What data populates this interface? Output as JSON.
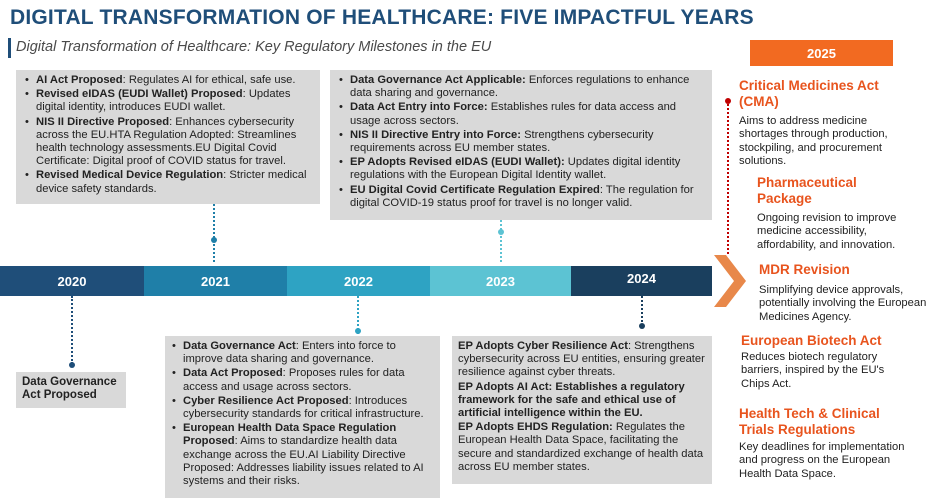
{
  "title": "DIGITAL TRANSFORMATION OF HEALTHCARE: FIVE IMPACTFUL YEARS",
  "subtitle": "Digital Transformation of Healthcare: Key Regulatory Milestones in the EU",
  "timeline": {
    "years": [
      "2020",
      "2021",
      "2022",
      "2023",
      "2024"
    ],
    "colors": [
      "#1f4e79",
      "#1f7fa8",
      "#2ea3c3",
      "#5cc3d3",
      "#1a3f5e"
    ],
    "arrow_color": "#e8884a"
  },
  "box_2021": [
    {
      "bold": "AI Act Proposed",
      "text": ": Regulates AI for ethical, safe use."
    },
    {
      "bold": "Revised eIDAS (EUDI Wallet) Proposed",
      "text": ": Updates digital identity, introduces EUDI wallet."
    },
    {
      "bold": "NIS II Directive Proposed",
      "text": ": Enhances cybersecurity across the EU.HTA Regulation Adopted: Streamlines health technology assessments.EU Digital Covid Certificate: Digital proof of COVID status for travel."
    },
    {
      "bold": "Revised Medical Device Regulation",
      "text": ": Stricter medical device safety standards."
    }
  ],
  "box_2023": [
    {
      "bold": "Data Governance Act Applicable:",
      "text": " Enforces regulations to enhance data sharing and governance."
    },
    {
      "bold": "Data Act Entry into Force:",
      "text": " Establishes rules for data access and usage across sectors."
    },
    {
      "bold": "NIS II Directive Entry into Force:",
      "text": " Strengthens cybersecurity requirements across EU member states."
    },
    {
      "bold": "EP Adopts Revised eIDAS (EUDI Wallet):",
      "text": " Updates digital identity regulations with the European Digital Identity wallet."
    },
    {
      "bold": "EU Digital Covid Certificate Regulation Expired",
      "text": ": The regulation for digital COVID-19 status proof for travel is no longer valid."
    }
  ],
  "box_2022": [
    {
      "bold": "Data Governance Act",
      "text": ": Enters into force to improve data sharing and governance."
    },
    {
      "bold": "Data Act Proposed",
      "text": ": Proposes rules for data access and usage across sectors."
    },
    {
      "bold": "Cyber Resilience Act Proposed",
      "text": ": Introduces cybersecurity standards for critical infrastructure."
    },
    {
      "bold": "European Health Data Space Regulation Proposed",
      "text": ": Aims to standardize health data exchange across the EU.AI Liability Directive Proposed: Addresses liability issues related to AI systems and their risks."
    }
  ],
  "box_2024": [
    {
      "bold": "EP Adopts Cyber Resilience Act",
      "text": ": Strengthens cybersecurity across EU entities, ensuring greater resilience against cyber threats."
    },
    {
      "bold": "EP Adopts AI Act: Establishes a regulatory framework for the safe and ethical use of artificial intelligence within the EU.",
      "text": ""
    },
    {
      "bold": "EP Adopts EHDS Regulation:",
      "text": " Regulates the European Health Data Space, facilitating the secure and standardized exchange of health data across EU member states."
    }
  ],
  "box_2020_label": "Data Governance Act Proposed",
  "year_2025": {
    "badge": "2025",
    "badge_color": "#f26a21",
    "items": [
      {
        "heading": "Critical Medicines Act (CMA)",
        "desc": "Aims to address medicine shortages through production, stockpiling, and procurement solutions."
      },
      {
        "heading": "Pharmaceutical Package",
        "desc": "Ongoing revision to improve medicine accessibility, affordability, and innovation."
      },
      {
        "heading": "MDR Revision",
        "desc": "Simplifying device approvals, potentially involving the European Medicines Agency."
      },
      {
        "heading": "European Biotech Act",
        "desc": "Reduces biotech regulatory barriers, inspired by the EU's Chips Act."
      },
      {
        "heading": "Health Tech & Clinical Trials Regulations",
        "desc": "Key deadlines for implementation and progress on the European Health Data Space."
      }
    ]
  }
}
